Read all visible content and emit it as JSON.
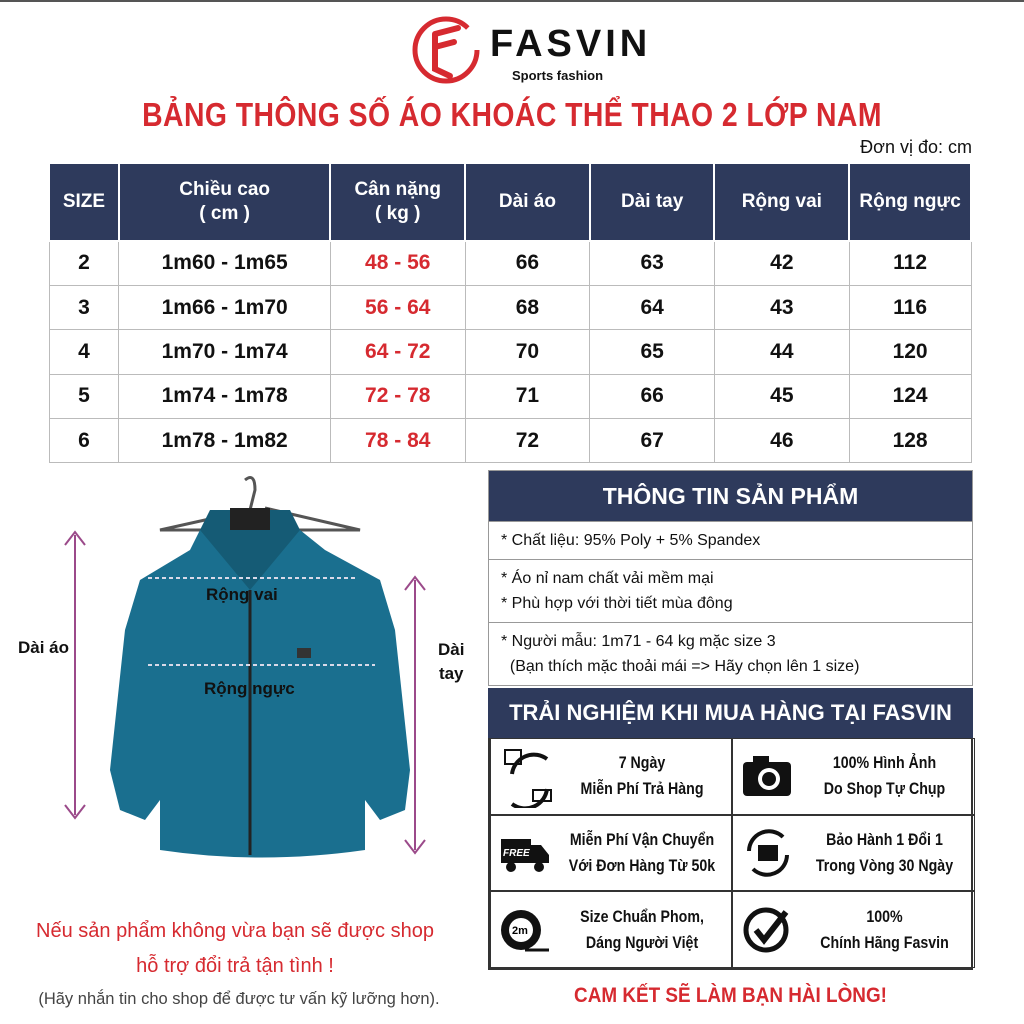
{
  "brand": {
    "name": "FASVIN",
    "tagline": "Sports fashion",
    "accent": "#d62a30",
    "header_color": "#2e3a5c"
  },
  "title": "BẢNG THÔNG SỐ ÁO KHOÁC THỂ THAO 2 LỚP NAM",
  "unit": "Đơn vị đo: cm",
  "table": {
    "headers": [
      "SIZE",
      "Chiều cao\n( cm )",
      "Cân nặng\n( kg )",
      "Dài áo",
      "Dài tay",
      "Rộng vai",
      "Rộng ngực"
    ],
    "rows": [
      [
        "2",
        "1m60 - 1m65",
        "48 - 56",
        "66",
        "63",
        "42",
        "112"
      ],
      [
        "3",
        "1m66 - 1m70",
        "56 - 64",
        "68",
        "64",
        "43",
        "116"
      ],
      [
        "4",
        "1m70 - 1m74",
        "64 - 72",
        "70",
        "65",
        "44",
        "120"
      ],
      [
        "5",
        "1m74 - 1m78",
        "72 - 78",
        "71",
        "66",
        "45",
        "124"
      ],
      [
        "6",
        "1m78 - 1m82",
        "78 - 84",
        "72",
        "67",
        "46",
        "128"
      ]
    ]
  },
  "diagram": {
    "shoulder": "Rộng vai",
    "chest": "Rộng ngực",
    "length": "Dài áo",
    "sleeve_1": "Dài",
    "sleeve_2": "tay"
  },
  "product_info": {
    "title": "THÔNG TIN SẢN PHẨM",
    "lines": [
      [
        "* Chất liệu: 95% Poly + 5% Spandex"
      ],
      [
        "* Áo nỉ nam chất vải mềm mại",
        "* Phù hợp với thời tiết mùa đông"
      ],
      [
        "* Người mẫu: 1m71 - 64 kg mặc size 3",
        "  (Bạn thích mặc thoải mái => Hãy chọn lên 1 size)"
      ]
    ]
  },
  "experience": {
    "title": "TRẢI NGHIỆM KHI MUA HÀNG TẠI FASVIN",
    "items": [
      {
        "icon": "return-cycle-icon",
        "l1": "7 Ngày",
        "l2": "Miễn Phí Trả Hàng"
      },
      {
        "icon": "camera-icon",
        "l1": "100% Hình Ảnh",
        "l2": "Do Shop Tự Chụp"
      },
      {
        "icon": "free-truck-icon",
        "l1": "Miễn Phí Vận Chuyển",
        "l2": "Với Đơn Hàng Từ 50k",
        "badge": "FREE"
      },
      {
        "icon": "exchange-box-icon",
        "l1": "Bảo Hành 1 Đổi 1",
        "l2": "Trong Vòng 30 Ngày"
      },
      {
        "icon": "tape-measure-icon",
        "l1": "Size Chuẩn Phom,",
        "l2": "Dáng Người Việt",
        "badge": "2m"
      },
      {
        "icon": "check-circle-icon",
        "l1": "100%",
        "l2": "Chính Hãng Fasvin"
      }
    ]
  },
  "notice": {
    "l1": "Nếu sản phẩm không vừa bạn sẽ được shop",
    "l2": "hỗ trợ đổi trả tận tình !",
    "l3": "(Hãy nhắn tin cho shop để được tư vấn kỹ lưỡng hơn)."
  },
  "commitment": "CAM KẾT SẼ LÀM BẠN HÀI LÒNG!"
}
